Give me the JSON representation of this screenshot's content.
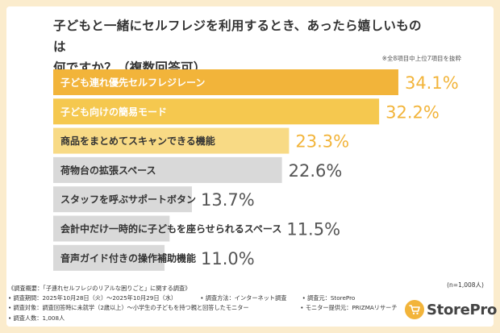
{
  "colors": {
    "background": "#fbeccd",
    "bar_top": "#f2b43a",
    "bar_second": "#f5c84f",
    "bar_third": "#f8da85",
    "bar_rest": "#d9d9d9",
    "value_highlight": "#f2b43a",
    "value_normal": "#555555",
    "logo": "#f2b43a"
  },
  "title_line1": "子どもと一緒にセルフレジを利用するとき、あったら嬉しいものは",
  "title_line2": "何ですか？（複数回答可）",
  "note": "※全8項目中上位7項目を抜粋",
  "sample_size": "(n=1,008人)",
  "chart_data": {
    "type": "bar",
    "orientation": "horizontal",
    "categories": [
      "子ども連れ優先セルフレジレーン",
      "子ども向けの簡易モード",
      "商品をまとめてスキャンできる機能",
      "荷物台の拡張スペース",
      "スタッフを呼ぶサポートボタン",
      "会計中だけ一時的に子どもを座らせられるスペース",
      "音声ガイド付きの操作補助機能"
    ],
    "values": [
      34.1,
      32.2,
      23.3,
      22.6,
      13.7,
      11.5,
      11.0
    ],
    "value_labels": [
      "34.1%",
      "32.2%",
      "23.3%",
      "22.6%",
      "13.7%",
      "11.5%",
      "11.0%"
    ],
    "xlim": [
      0,
      40
    ],
    "grid": false,
    "legend": "none"
  },
  "footer": {
    "heading": "《調査概要：「子連れセルフレジのリアルな困りごと」に関する調査》",
    "period": "• 調査期間：2025年10月28日（火）〜2025年10月29日（水）",
    "method": "• 調査方法：インターネット調査",
    "client": "• 調査元：StorePro",
    "target": "• 調査対象：調査回答時に未就学（2歳以上）〜小学生の子どもを持つ親と回答したモニター",
    "provider": "• モニター提供元：PRIZMAリサーチ",
    "respondents": "• 調査人数：1,008人"
  },
  "logo": {
    "icon": "shopping-cart-icon",
    "text": "StorePro"
  }
}
